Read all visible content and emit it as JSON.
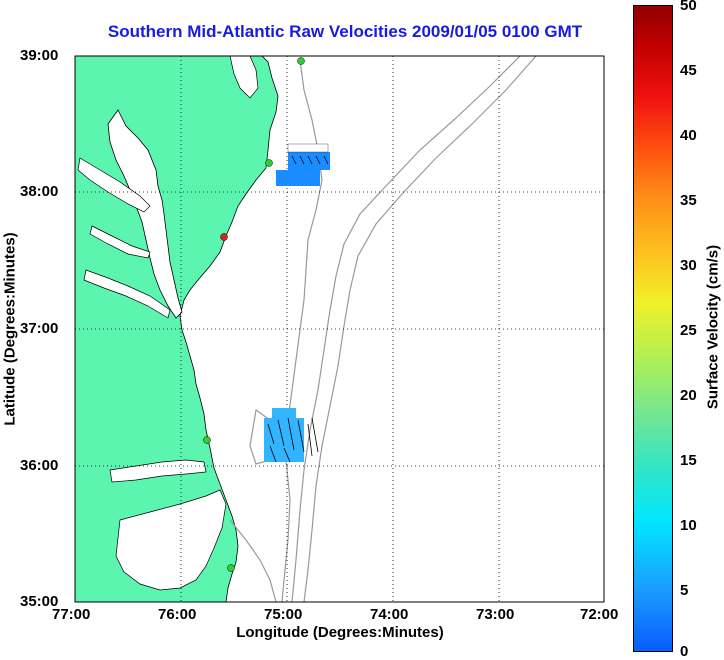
{
  "title": "Southern Mid-Atlantic Raw Velocities 2009/01/05 0100 GMT",
  "x_axis": {
    "label": "Longitude (Degrees:Minutes)",
    "ticks": [
      "77:00",
      "76:00",
      "75:00",
      "74:00",
      "73:00",
      "72:00"
    ]
  },
  "y_axis": {
    "label": "Latitude (Degrees:Minutes)",
    "ticks": [
      "39:00",
      "38:00",
      "37:00",
      "36:00",
      "35:00"
    ]
  },
  "colorbar": {
    "label": "Surface Velocity (cm/s)",
    "ticks": [
      "50",
      "45",
      "40",
      "35",
      "30",
      "25",
      "20",
      "15",
      "10",
      "5",
      "0"
    ]
  },
  "colors": {
    "land": "#5cf5b0",
    "coast": "#000000",
    "bathymetry": "#999999",
    "grid": "#000000",
    "title": "#1a1ae6",
    "station_green": "#33cc33",
    "station_red": "#dd2222"
  }
}
